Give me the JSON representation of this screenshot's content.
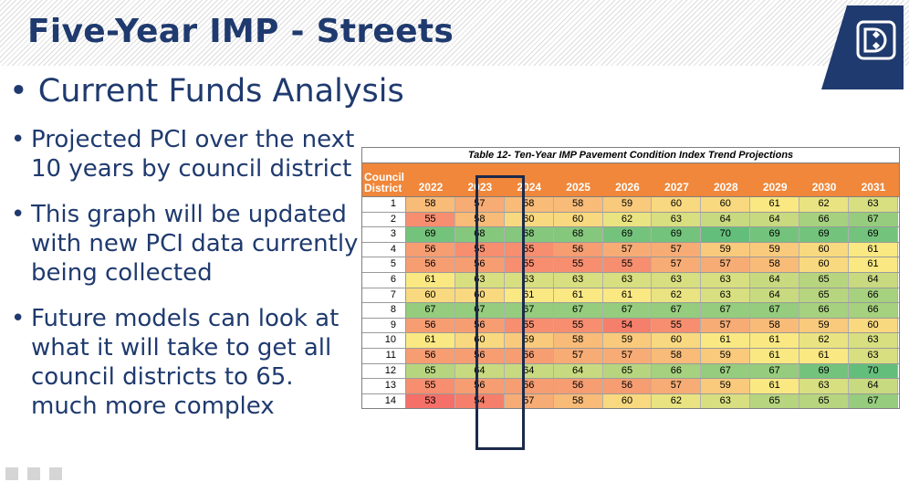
{
  "slide": {
    "title": "Five-Year IMP - Streets",
    "main_bullet_symbol": "•",
    "main_bullet": "Current Funds Analysis",
    "sub_bullets": [
      "Projected PCI over the next 10 years by council district",
      "This graph will be updated with new PCI data currently being collected",
      "Future models can look at what it will take to get all council districts to 65. much more complex"
    ],
    "logo_icon": "city-of-dallas-logo-icon"
  },
  "table": {
    "caption": "Table 12- Ten-Year IMP Pavement Condition Index Trend Projections",
    "district_header": "Council District",
    "years": [
      "2022",
      "2023",
      "2024",
      "2025",
      "2026",
      "2027",
      "2028",
      "2029",
      "2030",
      "2031"
    ],
    "highlighted_year": "2023",
    "header_color": "#f0873a",
    "rows": [
      {
        "district": "1",
        "values": [
          58,
          57,
          58,
          58,
          59,
          60,
          60,
          61,
          62,
          63
        ]
      },
      {
        "district": "2",
        "values": [
          55,
          58,
          60,
          60,
          62,
          63,
          64,
          64,
          66,
          67
        ]
      },
      {
        "district": "3",
        "values": [
          69,
          68,
          68,
          68,
          69,
          69,
          70,
          69,
          69,
          69
        ]
      },
      {
        "district": "4",
        "values": [
          56,
          55,
          55,
          56,
          57,
          57,
          59,
          59,
          60,
          61
        ]
      },
      {
        "district": "5",
        "values": [
          56,
          56,
          55,
          55,
          55,
          57,
          57,
          58,
          60,
          61
        ]
      },
      {
        "district": "6",
        "values": [
          61,
          63,
          63,
          63,
          63,
          63,
          63,
          64,
          65,
          64
        ]
      },
      {
        "district": "7",
        "values": [
          60,
          60,
          61,
          61,
          61,
          62,
          63,
          64,
          65,
          66
        ]
      },
      {
        "district": "8",
        "values": [
          67,
          67,
          67,
          67,
          67,
          67,
          67,
          67,
          66,
          66
        ]
      },
      {
        "district": "9",
        "values": [
          56,
          56,
          55,
          55,
          54,
          55,
          57,
          58,
          59,
          60
        ]
      },
      {
        "district": "10",
        "values": [
          61,
          60,
          59,
          58,
          59,
          60,
          61,
          61,
          62,
          63
        ]
      },
      {
        "district": "11",
        "values": [
          56,
          56,
          56,
          57,
          57,
          58,
          59,
          61,
          61,
          63
        ]
      },
      {
        "district": "12",
        "values": [
          65,
          64,
          64,
          64,
          65,
          66,
          67,
          67,
          69,
          70
        ]
      },
      {
        "district": "13",
        "values": [
          55,
          56,
          56,
          56,
          56,
          57,
          59,
          61,
          63,
          64
        ]
      },
      {
        "district": "14",
        "values": [
          53,
          54,
          57,
          58,
          60,
          62,
          63,
          65,
          65,
          67
        ]
      }
    ]
  }
}
